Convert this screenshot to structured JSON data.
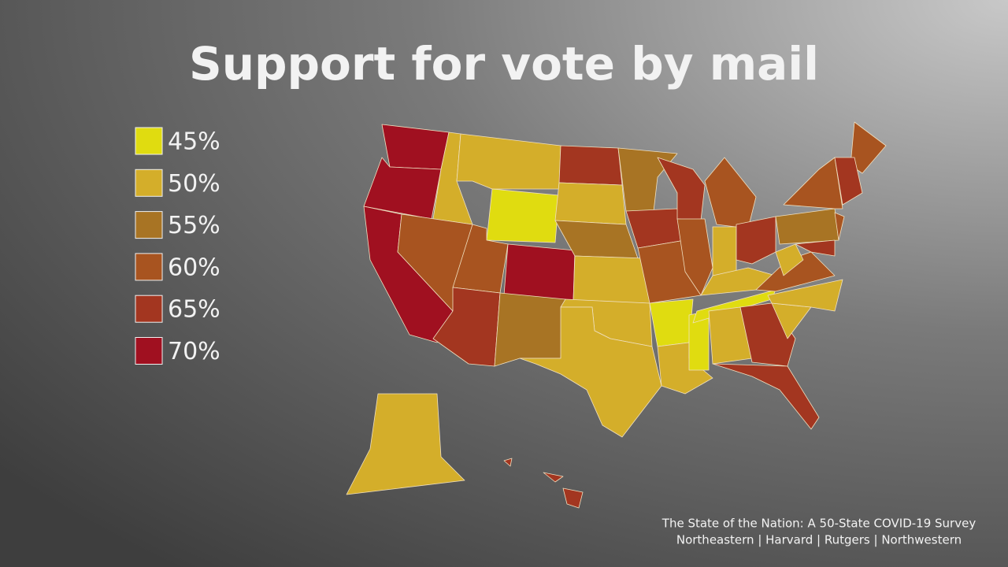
{
  "title": "Support for vote by mail",
  "legend": [
    {
      "value": 45,
      "label": "45%",
      "color": "#e0dc10"
    },
    {
      "value": 50,
      "label": "50%",
      "color": "#d4ae2a"
    },
    {
      "value": 55,
      "label": "55%",
      "color": "#a87424"
    },
    {
      "value": 60,
      "label": "60%",
      "color": "#a85420"
    },
    {
      "value": 65,
      "label": "65%",
      "color": "#a33620"
    },
    {
      "value": 70,
      "label": "70%",
      "color": "#a01020"
    }
  ],
  "source": [
    "The State of the Nation: A 50-State COVID-19 Survey",
    "Northeastern | Harvard | Rutgers | Northwestern"
  ]
}
